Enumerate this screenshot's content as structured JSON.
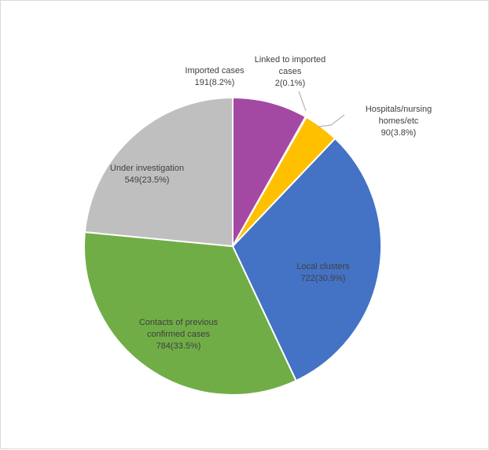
{
  "chart_data": {
    "type": "pie",
    "title": "",
    "slices": [
      {
        "label_lines": [
          "Imported cases"
        ],
        "value_label": "191(8.2%)",
        "value": 191,
        "percent": 8.2,
        "color": "#a349a4"
      },
      {
        "label_lines": [
          "Linked to imported",
          "cases"
        ],
        "value_label": "2(0.1%)",
        "value": 2,
        "percent": 0.1,
        "color": "#f2f2f2"
      },
      {
        "label_lines": [
          "Hospitals/nursing",
          "homes/etc"
        ],
        "value_label": "90(3.8%)",
        "value": 90,
        "percent": 3.8,
        "color": "#ffc000"
      },
      {
        "label_lines": [
          "Local clusters"
        ],
        "value_label": "722(30.9%)",
        "value": 722,
        "percent": 30.9,
        "color": "#4472c4"
      },
      {
        "label_lines": [
          "Contacts of previous",
          "confirmed cases"
        ],
        "value_label": "784(33.5%)",
        "value": 784,
        "percent": 33.5,
        "color": "#70ad47"
      },
      {
        "label_lines": [
          "Under investigation"
        ],
        "value_label": "549(23.5%)",
        "value": 549,
        "percent": 23.5,
        "color": "#bfbfbf"
      }
    ]
  }
}
